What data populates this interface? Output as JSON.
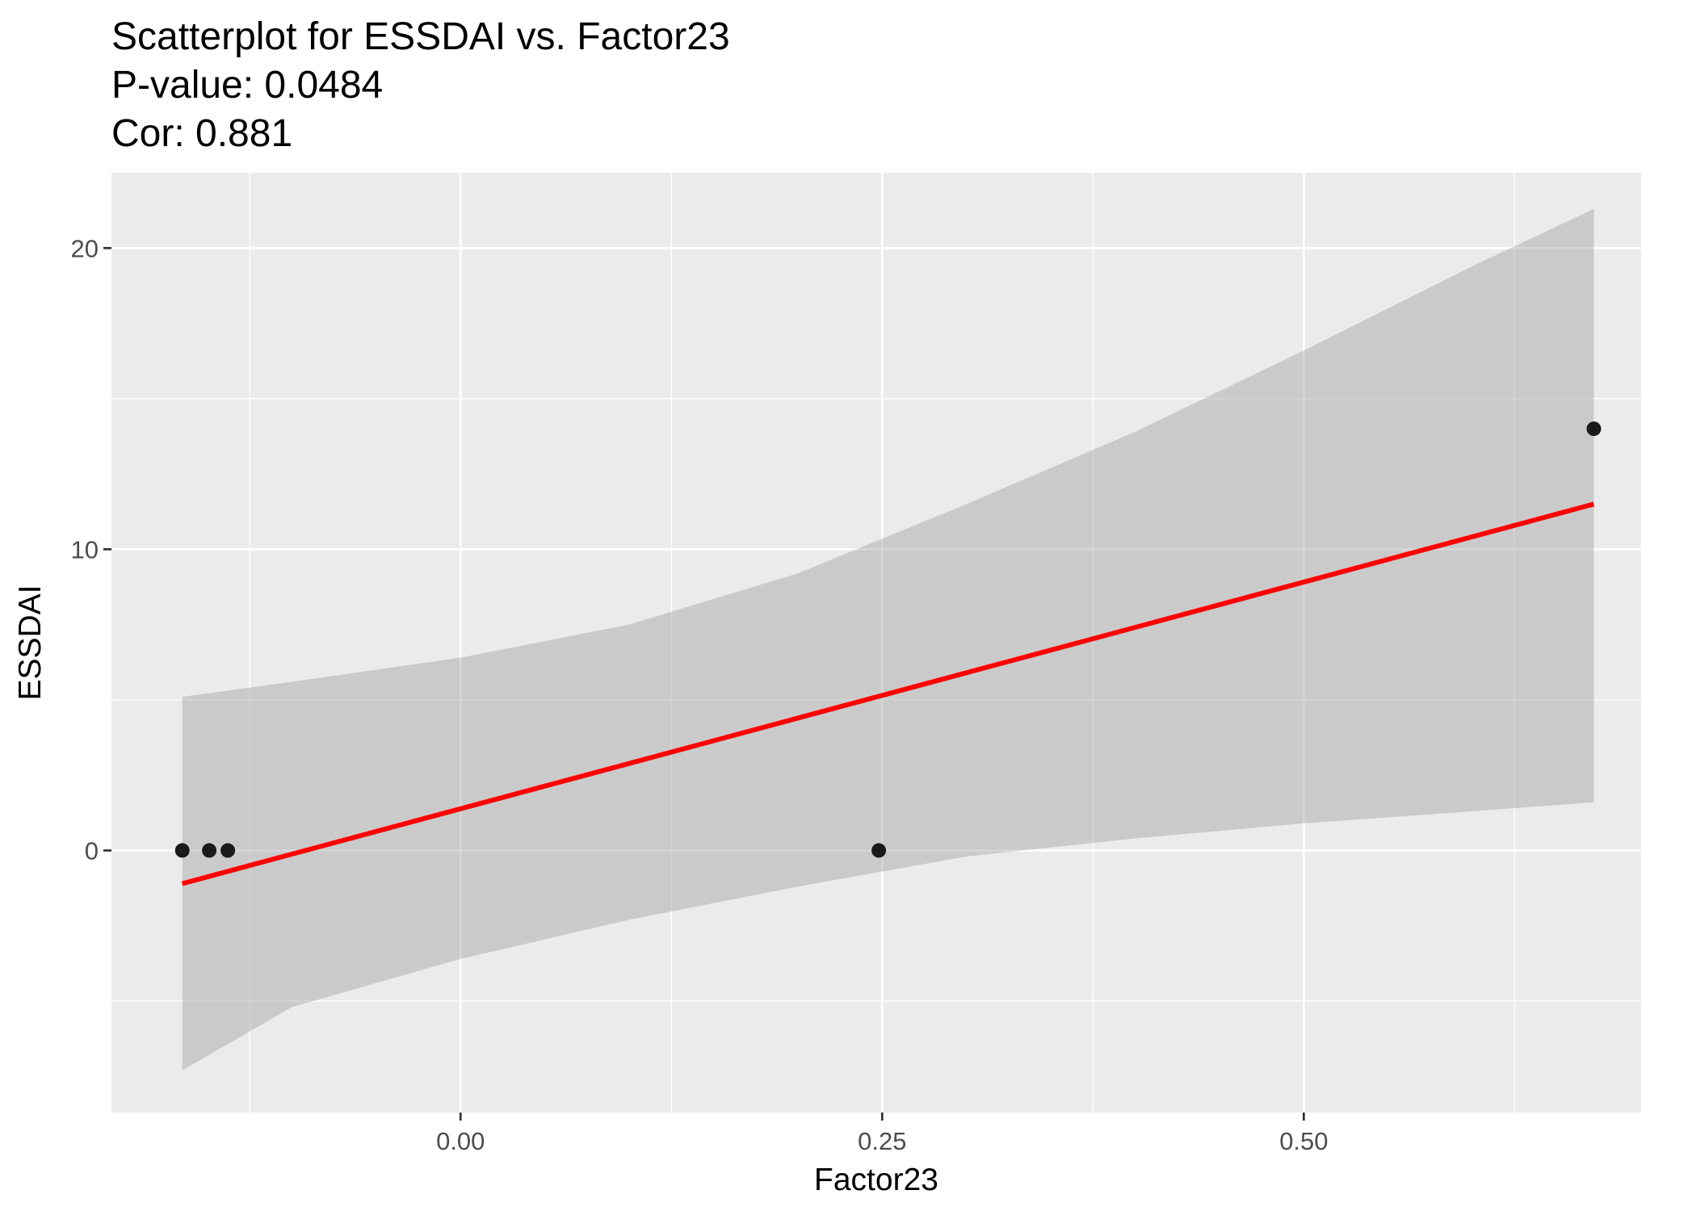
{
  "chart_data": {
    "type": "scatter",
    "title": "Scatterplot for ESSDAI vs. Factor23",
    "subtitle_lines": [
      "P-value: 0.0484",
      "Cor: 0.881"
    ],
    "xlabel": "Factor23",
    "ylabel": "ESSDAI",
    "xlim": [
      -0.207,
      0.7
    ],
    "ylim": [
      -8.7,
      22.5
    ],
    "x_ticks": [
      0.0,
      0.25,
      0.5
    ],
    "x_tick_labels": [
      "0.00",
      "0.25",
      "0.50"
    ],
    "y_ticks": [
      0,
      10,
      20
    ],
    "y_tick_labels": [
      "0",
      "10",
      "20"
    ],
    "grid": true,
    "legend": "none",
    "points": [
      {
        "x": -0.165,
        "y": 0
      },
      {
        "x": -0.149,
        "y": 0
      },
      {
        "x": -0.138,
        "y": 0
      },
      {
        "x": 0.248,
        "y": 0
      },
      {
        "x": 0.672,
        "y": 14
      }
    ],
    "fit_line": {
      "x": [
        -0.165,
        0.672
      ],
      "y": [
        -1.1,
        11.5
      ]
    },
    "confidence_band": {
      "x": [
        -0.165,
        -0.1,
        0.0,
        0.1,
        0.2,
        0.3,
        0.4,
        0.5,
        0.6,
        0.672
      ],
      "upper": [
        5.1,
        5.6,
        6.4,
        7.5,
        9.2,
        11.5,
        13.9,
        16.6,
        19.4,
        21.3
      ],
      "lower": [
        -7.3,
        -5.2,
        -3.6,
        -2.3,
        -1.2,
        -0.2,
        0.4,
        0.9,
        1.3,
        1.6
      ]
    },
    "colors": {
      "panel": "#ebebeb",
      "grid": "#ffffff",
      "points": "#1a1a1a",
      "fit_line": "#ff0000",
      "band": "#999999"
    }
  }
}
